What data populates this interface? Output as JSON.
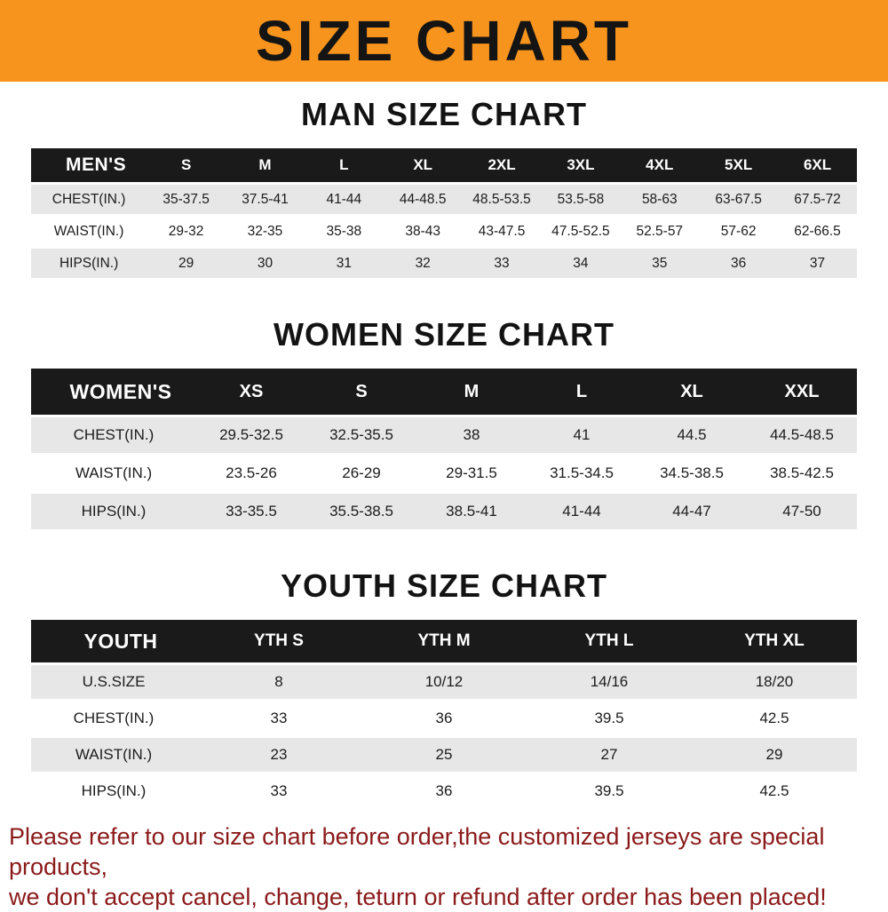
{
  "banner": {
    "title": "SIZE CHART"
  },
  "sections": {
    "man": {
      "heading": "MAN SIZE CHART",
      "table": {
        "corner": "MEN'S",
        "columns": [
          "S",
          "M",
          "L",
          "XL",
          "2XL",
          "3XL",
          "4XL",
          "5XL",
          "6XL"
        ],
        "rows": [
          {
            "label": "CHEST(IN.)",
            "values": [
              "35-37.5",
              "37.5-41",
              "41-44",
              "44-48.5",
              "48.5-53.5",
              "53.5-58",
              "58-63",
              "63-67.5",
              "67.5-72"
            ]
          },
          {
            "label": "WAIST(IN.)",
            "values": [
              "29-32",
              "32-35",
              "35-38",
              "38-43",
              "43-47.5",
              "47.5-52.5",
              "52.5-57",
              "57-62",
              "62-66.5"
            ]
          },
          {
            "label": "HIPS(IN.)",
            "values": [
              "29",
              "30",
              "31",
              "32",
              "33",
              "34",
              "35",
              "36",
              "37"
            ]
          }
        ]
      }
    },
    "women": {
      "heading": "WOMEN SIZE CHART",
      "table": {
        "corner": "WOMEN'S",
        "columns": [
          "XS",
          "S",
          "M",
          "L",
          "XL",
          "XXL"
        ],
        "rows": [
          {
            "label": "CHEST(IN.)",
            "values": [
              "29.5-32.5",
              "32.5-35.5",
              "38",
              "41",
              "44.5",
              "44.5-48.5"
            ]
          },
          {
            "label": "WAIST(IN.)",
            "values": [
              "23.5-26",
              "26-29",
              "29-31.5",
              "31.5-34.5",
              "34.5-38.5",
              "38.5-42.5"
            ]
          },
          {
            "label": "HIPS(IN.)",
            "values": [
              "33-35.5",
              "35.5-38.5",
              "38.5-41",
              "41-44",
              "44-47",
              "47-50"
            ]
          }
        ]
      }
    },
    "youth": {
      "heading": "YOUTH SIZE CHART",
      "table": {
        "corner": "YOUTH",
        "columns": [
          "YTH S",
          "YTH M",
          "YTH L",
          "YTH XL"
        ],
        "rows": [
          {
            "label": "U.S.SIZE",
            "values": [
              "8",
              "10/12",
              "14/16",
              "18/20"
            ]
          },
          {
            "label": "CHEST(IN.)",
            "values": [
              "33",
              "36",
              "39.5",
              "42.5"
            ]
          },
          {
            "label": "WAIST(IN.)",
            "values": [
              "23",
              "25",
              "27",
              "29"
            ]
          },
          {
            "label": "HIPS(IN.)",
            "values": [
              "33",
              "36",
              "39.5",
              "42.5"
            ]
          }
        ]
      }
    }
  },
  "disclaimer": {
    "line1": "Please refer to our size chart before order,the customized jerseys are special products,",
    "line2": "we don't accept cancel, change, teturn or refund after order has been placed!"
  },
  "colors": {
    "banner_bg": "#f7941d",
    "table_header_bg": "#1a1a1a",
    "table_header_text": "#ffffff",
    "row_alt_bg": "#e7e7e7",
    "disclaimer_text": "#8b1a1a"
  }
}
